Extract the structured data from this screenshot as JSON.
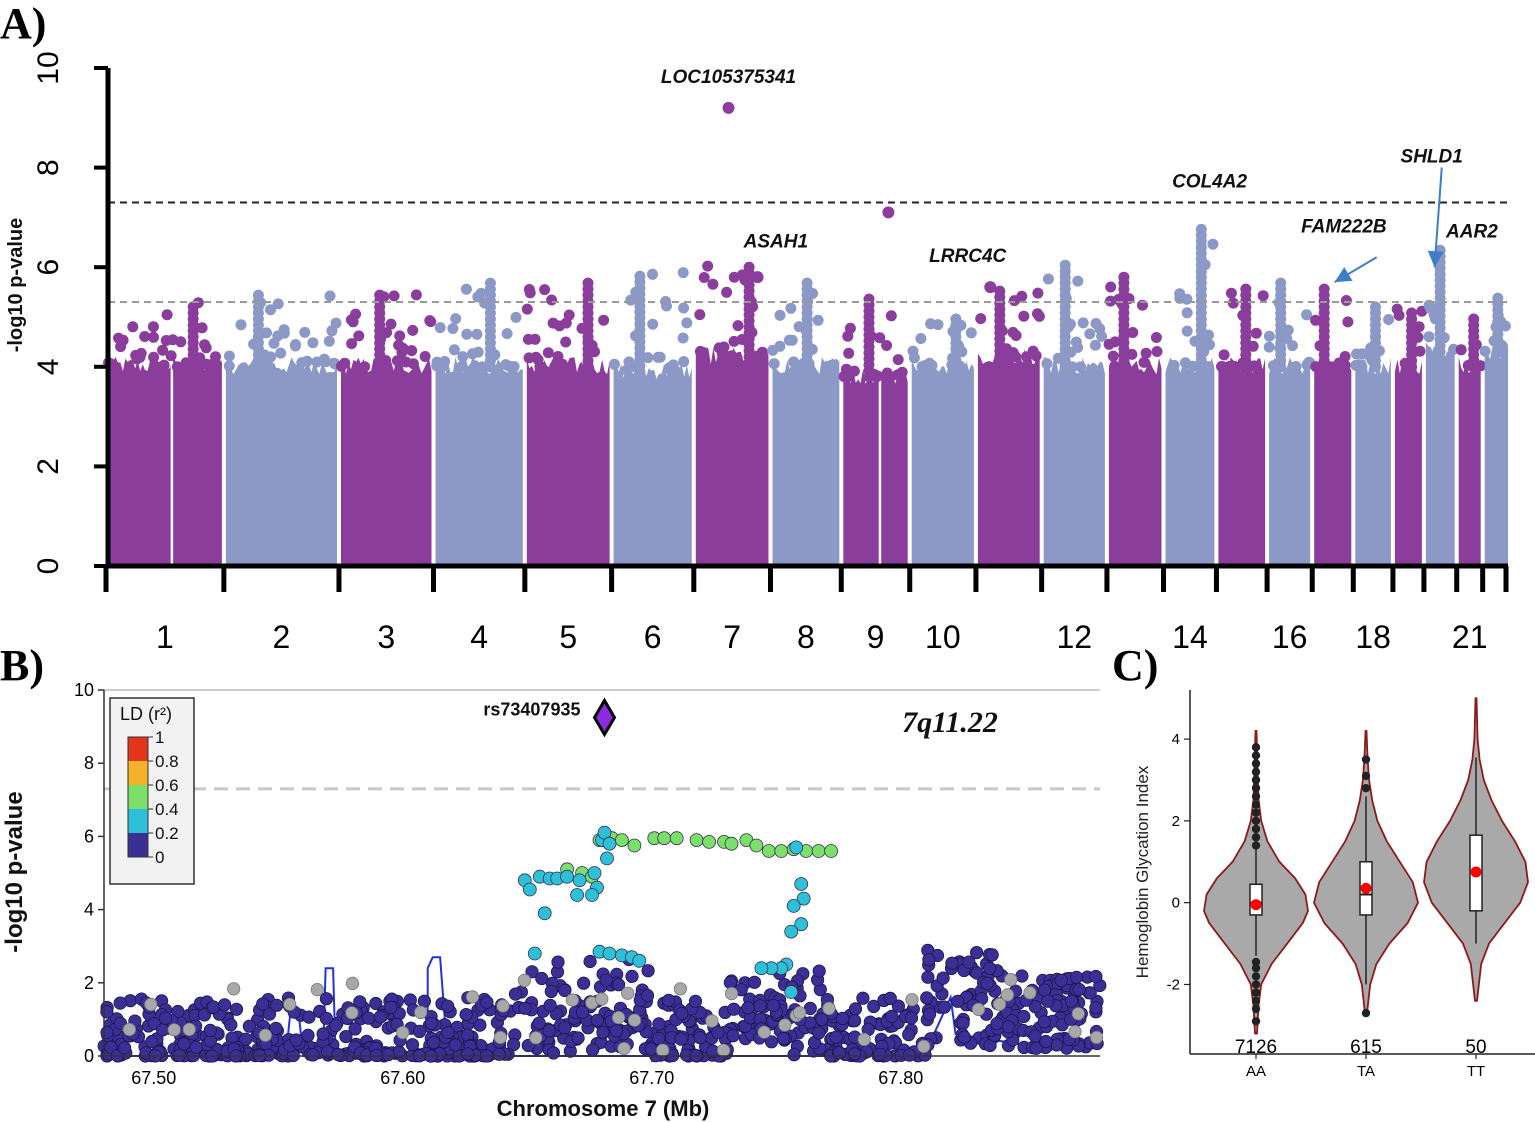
{
  "panels": {
    "a": {
      "label": "A)"
    },
    "b": {
      "label": "B)"
    },
    "c": {
      "label": "C)"
    }
  },
  "colors": {
    "manhattan_odd": "#8a3d9a",
    "manhattan_even": "#8c98c6",
    "genome_wide_line": "#222222",
    "suggestive_line": "#999999",
    "arrow": "#3d7dca",
    "ld_0": "#3b2f96",
    "ld_02": "#2ec0d8",
    "ld_04": "#7be06a",
    "ld_06": "#f3b22a",
    "ld_08": "#e2361c",
    "lead_snp": "#8a2be2",
    "recomb_line": "#2233dd",
    "violin_fill": "#a9a9a9",
    "violin_border": "#8b1a1a",
    "mean_point": "#ff0000"
  },
  "chart_data": [
    {
      "type": "scatter",
      "subtype": "manhattan",
      "ylabel": "-log10 p-value",
      "ylim": [
        0,
        10
      ],
      "yticks": [
        "0",
        "2",
        "4",
        "6",
        "8",
        "10"
      ],
      "genome_wide_threshold": 7.3,
      "suggestive_threshold": 5.3,
      "chromosomes": [
        {
          "chr": "1",
          "show_label": true,
          "base": 4.0,
          "top": 5.3,
          "split": true
        },
        {
          "chr": "2",
          "show_label": true,
          "base": 4.0,
          "top": 5.5
        },
        {
          "chr": "3",
          "show_label": true,
          "base": 4.0,
          "top": 5.5
        },
        {
          "chr": "4",
          "show_label": true,
          "base": 4.0,
          "top": 5.7
        },
        {
          "chr": "5",
          "show_label": true,
          "base": 4.0,
          "top": 5.7
        },
        {
          "chr": "6",
          "show_label": true,
          "base": 3.9,
          "top": 5.9
        },
        {
          "chr": "7",
          "show_label": true,
          "base": 4.2,
          "top": 6.1
        },
        {
          "chr": "8",
          "show_label": true,
          "base": 4.0,
          "top": 5.7
        },
        {
          "chr": "9",
          "show_label": true,
          "base": 3.8,
          "top": 5.4,
          "split": true
        },
        {
          "chr": "10",
          "show_label": true,
          "base": 4.0,
          "top": 5.0
        },
        {
          "chr": "11",
          "show_label": false,
          "base": 4.2,
          "top": 5.6
        },
        {
          "chr": "12",
          "show_label": true,
          "base": 4.0,
          "top": 6.1
        },
        {
          "chr": "13",
          "show_label": false,
          "base": 4.0,
          "top": 5.9
        },
        {
          "chr": "14",
          "show_label": true,
          "base": 4.0,
          "top": 6.8
        },
        {
          "chr": "15",
          "show_label": false,
          "base": 4.0,
          "top": 5.6
        },
        {
          "chr": "16",
          "show_label": true,
          "base": 4.0,
          "top": 5.7
        },
        {
          "chr": "17",
          "show_label": false,
          "base": 4.0,
          "top": 5.6
        },
        {
          "chr": "18",
          "show_label": true,
          "base": 4.0,
          "top": 5.3
        },
        {
          "chr": "19",
          "show_label": false,
          "base": 4.0,
          "top": 5.2
        },
        {
          "chr": "20",
          "show_label": false,
          "base": 4.3,
          "top": 6.4
        },
        {
          "chr": "21",
          "show_label": true,
          "base": 4.0,
          "top": 5.0
        },
        {
          "chr": "22",
          "show_label": false,
          "base": 4.3,
          "top": 5.4
        }
      ],
      "highlight_points": [
        {
          "chr": "7",
          "frac": 0.45,
          "y": 9.2
        },
        {
          "chr": "9",
          "frac": 0.7,
          "y": 7.1
        },
        {
          "chr": "7",
          "frac": 0.85,
          "y": 5.8
        },
        {
          "chr": "11",
          "frac": 0.2,
          "y": 5.6
        }
      ],
      "annotations": [
        {
          "text": "LOC105375341",
          "chr": "7",
          "frac": 0.45,
          "y": 9.7
        },
        {
          "text": "ASAH1",
          "chr": "8",
          "frac": 0.05,
          "y": 6.4
        },
        {
          "text": "LRRC4C",
          "chr": "10",
          "frac": 0.9,
          "y": 6.1
        },
        {
          "text": "COL4A2",
          "chr": "14",
          "frac": 0.9,
          "y": 7.6
        },
        {
          "text": "SHLD1",
          "chr": "20",
          "frac": 0.2,
          "y": 8.1
        },
        {
          "text": "FAM222B",
          "chr": "17",
          "frac": 0.8,
          "y": 6.7
        },
        {
          "text": "AAR2",
          "chr": "21",
          "frac": 0.6,
          "y": 6.6
        }
      ],
      "arrows": [
        {
          "from_chr": "18",
          "from_frac": 0.6,
          "from_y": 6.2,
          "to_chr": "17",
          "to_frac": 0.55,
          "to_y": 5.7
        },
        {
          "from_chr": "20",
          "from_frac": 0.55,
          "from_y": 8.0,
          "to_chr": "20",
          "to_frac": 0.3,
          "to_y": 6.0
        }
      ]
    },
    {
      "type": "scatter",
      "subtype": "locuszoom",
      "xlabel": "Chromosome 7 (Mb)",
      "ylabel": "-log10 p-value",
      "xlim": [
        67.48,
        67.88
      ],
      "ylim": [
        0,
        10
      ],
      "xticks": [
        67.5,
        67.6,
        67.7,
        67.8
      ],
      "xtick_labels": [
        "67.50",
        "67.60",
        "67.70",
        "67.80"
      ],
      "yticks": [
        "0",
        "2",
        "4",
        "6",
        "8",
        "10"
      ],
      "genome_wide_threshold": 7.3,
      "region_label": "7q11.22",
      "lead_snp": {
        "name": "rs73407935",
        "x": 67.681,
        "y": 9.25
      },
      "legend": {
        "title": "LD (r²)",
        "labels": [
          "1",
          "0.8",
          "0.6",
          "0.4",
          "0.2",
          "0"
        ]
      },
      "clusters": [
        {
          "name": "green-arc",
          "ld": "0.4",
          "points": [
            [
              67.679,
              5.9
            ],
            [
              67.684,
              5.95
            ],
            [
              67.688,
              5.9
            ],
            [
              67.693,
              5.75
            ],
            [
              67.701,
              5.95
            ],
            [
              67.705,
              5.95
            ],
            [
              67.71,
              5.95
            ],
            [
              67.718,
              5.9
            ],
            [
              67.723,
              5.85
            ],
            [
              67.729,
              5.85
            ],
            [
              67.732,
              5.8
            ],
            [
              67.738,
              5.9
            ],
            [
              67.742,
              5.75
            ],
            [
              67.747,
              5.6
            ],
            [
              67.752,
              5.6
            ],
            [
              67.757,
              5.65
            ],
            [
              67.762,
              5.6
            ],
            [
              67.767,
              5.6
            ],
            [
              67.772,
              5.6
            ],
            [
              67.666,
              5.1
            ],
            [
              67.672,
              5.0
            ],
            [
              67.676,
              4.9
            ]
          ]
        },
        {
          "name": "cyan-arc",
          "ld": "0.2",
          "points": [
            [
              67.649,
              4.8
            ],
            [
              67.651,
              4.55
            ],
            [
              67.655,
              4.9
            ],
            [
              67.659,
              4.85
            ],
            [
              67.662,
              4.85
            ],
            [
              67.666,
              4.9
            ],
            [
              67.671,
              4.8
            ],
            [
              67.677,
              5.0
            ],
            [
              67.678,
              4.6
            ],
            [
              67.68,
              5.9
            ],
            [
              67.681,
              6.1
            ],
            [
              67.682,
              5.4
            ],
            [
              67.683,
              5.8
            ],
            [
              67.676,
              4.4
            ],
            [
              67.67,
              4.4
            ],
            [
              67.657,
              3.9
            ],
            [
              67.758,
              5.7
            ],
            [
              67.76,
              4.7
            ],
            [
              67.761,
              4.3
            ],
            [
              67.76,
              3.6
            ],
            [
              67.757,
              4.1
            ],
            [
              67.756,
              3.4
            ],
            [
              67.754,
              2.5
            ],
            [
              67.752,
              2.4
            ],
            [
              67.748,
              2.4
            ],
            [
              67.744,
              2.4
            ],
            [
              67.653,
              2.8
            ],
            [
              67.679,
              2.85
            ],
            [
              67.683,
              2.8
            ],
            [
              67.688,
              2.75
            ],
            [
              67.692,
              2.7
            ],
            [
              67.695,
              2.6
            ],
            [
              67.756,
              1.75
            ]
          ]
        }
      ],
      "background_points": {
        "count": 900,
        "ld": "0",
        "grey_count": 45
      }
    },
    {
      "type": "violin",
      "ylabel": "Hemoglobin Glycation Index",
      "ylim": [
        -3.7,
        5.2
      ],
      "yticks": [
        -2,
        0,
        2,
        4
      ],
      "ytick_labels": [
        "-2",
        "0",
        "2",
        "4"
      ],
      "categories": [
        "AA",
        "TA",
        "TT"
      ],
      "counts": [
        "7126",
        "615",
        "50"
      ],
      "groups": [
        {
          "name": "AA",
          "n": 7126,
          "min": -3.2,
          "max": 4.2,
          "q1": -0.3,
          "median": 0.0,
          "q3": 0.45,
          "whisker_low": -1.3,
          "whisker_high": 1.3,
          "mean": -0.05,
          "density_y": [
            -3.2,
            -2.5,
            -2.0,
            -1.5,
            -1.0,
            -0.5,
            -0.2,
            0.2,
            0.6,
            1.0,
            1.5,
            2.0,
            2.5,
            3.2,
            4.2
          ],
          "density_w": [
            0.02,
            0.05,
            0.1,
            0.3,
            0.6,
            0.9,
            1.0,
            0.95,
            0.75,
            0.45,
            0.22,
            0.1,
            0.05,
            0.03,
            0.01
          ],
          "outliers": [
            -2.9,
            -2.6,
            -2.4,
            -2.2,
            -2.0,
            -1.8,
            -1.6,
            -1.45,
            1.4,
            1.6,
            1.8,
            2.0,
            2.2,
            2.4,
            2.6,
            2.8,
            3.0,
            3.2,
            3.4,
            3.6,
            3.8
          ]
        },
        {
          "name": "TA",
          "n": 615,
          "min": -2.7,
          "max": 4.2,
          "q1": -0.3,
          "median": 0.2,
          "q3": 1.0,
          "whisker_low": -2.0,
          "whisker_high": 2.6,
          "mean": 0.35,
          "density_y": [
            -2.7,
            -2.0,
            -1.5,
            -1.0,
            -0.5,
            0.0,
            0.5,
            1.0,
            1.5,
            2.0,
            2.5,
            3.0,
            3.5,
            4.2
          ],
          "density_w": [
            0.02,
            0.08,
            0.2,
            0.45,
            0.8,
            1.0,
            0.9,
            0.65,
            0.4,
            0.22,
            0.12,
            0.06,
            0.03,
            0.01
          ],
          "outliers": [
            -2.7,
            2.8,
            3.1,
            3.5
          ]
        },
        {
          "name": "TT",
          "n": 50,
          "min": -2.4,
          "max": 5.0,
          "q1": -0.2,
          "median": 0.75,
          "q3": 1.65,
          "whisker_low": -1.0,
          "whisker_high": 3.55,
          "mean": 0.75,
          "density_y": [
            -2.4,
            -1.5,
            -1.0,
            -0.5,
            0.0,
            0.5,
            1.0,
            1.5,
            2.0,
            2.5,
            3.0,
            3.5,
            4.0,
            5.0
          ],
          "density_w": [
            0.02,
            0.1,
            0.25,
            0.55,
            0.85,
            1.0,
            0.95,
            0.75,
            0.5,
            0.3,
            0.15,
            0.07,
            0.03,
            0.01
          ],
          "outliers": []
        }
      ]
    }
  ]
}
